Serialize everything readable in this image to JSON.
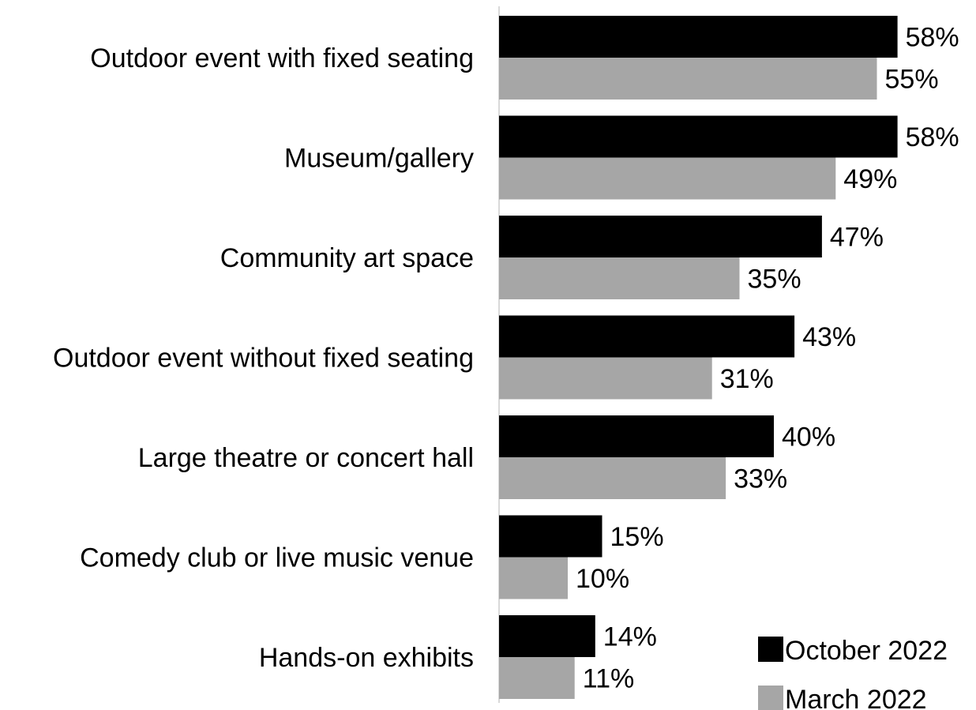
{
  "chart_data": {
    "type": "bar",
    "orientation": "horizontal",
    "categories": [
      "Outdoor event with fixed seating",
      "Museum/gallery",
      "Community art space",
      "Outdoor event without fixed seating",
      "Large theatre or concert hall",
      "Comedy club or live music venue",
      "Hands-on exhibits"
    ],
    "series": [
      {
        "name": "October 2022",
        "color": "#000000",
        "values": [
          58,
          58,
          47,
          43,
          40,
          15,
          14
        ],
        "labels": [
          "58%",
          "58%",
          "47%",
          "43%",
          "40%",
          "15%",
          "14%"
        ]
      },
      {
        "name": "March 2022",
        "color": "#a6a6a6",
        "values": [
          55,
          49,
          35,
          31,
          33,
          10,
          11
        ],
        "labels": [
          "55%",
          "49%",
          "35%",
          "31%",
          "33%",
          "10%",
          "11%"
        ]
      }
    ],
    "value_unit": "%",
    "xlim": [
      0,
      70
    ],
    "grid": false,
    "axis_line_color": "#d9d9d9",
    "legend_position": "bottom-right",
    "title": "",
    "xlabel": "",
    "ylabel": ""
  }
}
